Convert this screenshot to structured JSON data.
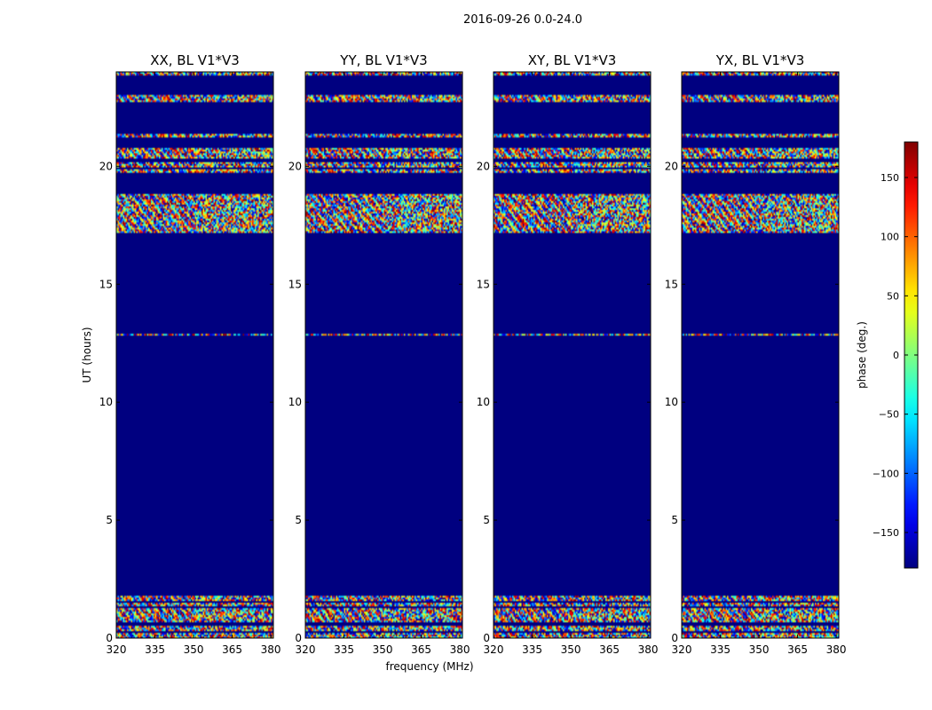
{
  "chart_data": {
    "type": "heatmap",
    "suptitle": "2016-09-26 0.0-24.0",
    "panels": [
      {
        "title": "XX, BL V1*V3",
        "seed": 11
      },
      {
        "title": "YY, BL V1*V3",
        "seed": 23
      },
      {
        "title": "XY, BL V1*V3",
        "seed": 37
      },
      {
        "title": "YX, BL V1*V3",
        "seed": 53
      }
    ],
    "xlabel": "frequency (MHz)",
    "ylabel": "UT (hours)",
    "xlim": [
      320,
      381
    ],
    "ylim": [
      0,
      24
    ],
    "xticks": [
      320,
      335,
      350,
      365,
      380
    ],
    "yticks": [
      0,
      5,
      10,
      15,
      20
    ],
    "colorbar": {
      "label": "phase (deg.)",
      "range": [
        -180,
        180
      ],
      "ticks": [
        -150,
        -100,
        -50,
        0,
        50,
        100,
        150
      ],
      "ticklabels": [
        "−150",
        "−100",
        "−50",
        "0",
        "50",
        "100",
        "150"
      ],
      "colormap": "jet"
    },
    "background_phase_deg": -180,
    "data_time_ranges_hours": [
      [
        0.0,
        0.25
      ],
      [
        0.3,
        0.55
      ],
      [
        0.65,
        1.3
      ],
      [
        1.35,
        1.5
      ],
      [
        1.6,
        1.8
      ],
      [
        12.8,
        12.9
      ],
      [
        17.2,
        17.5
      ],
      [
        17.5,
        18.8
      ],
      [
        19.7,
        19.9
      ],
      [
        19.95,
        20.15
      ],
      [
        20.3,
        20.6
      ],
      [
        20.65,
        20.8
      ],
      [
        21.2,
        21.4
      ],
      [
        22.7,
        23.0
      ],
      [
        23.85,
        24.0
      ]
    ]
  }
}
